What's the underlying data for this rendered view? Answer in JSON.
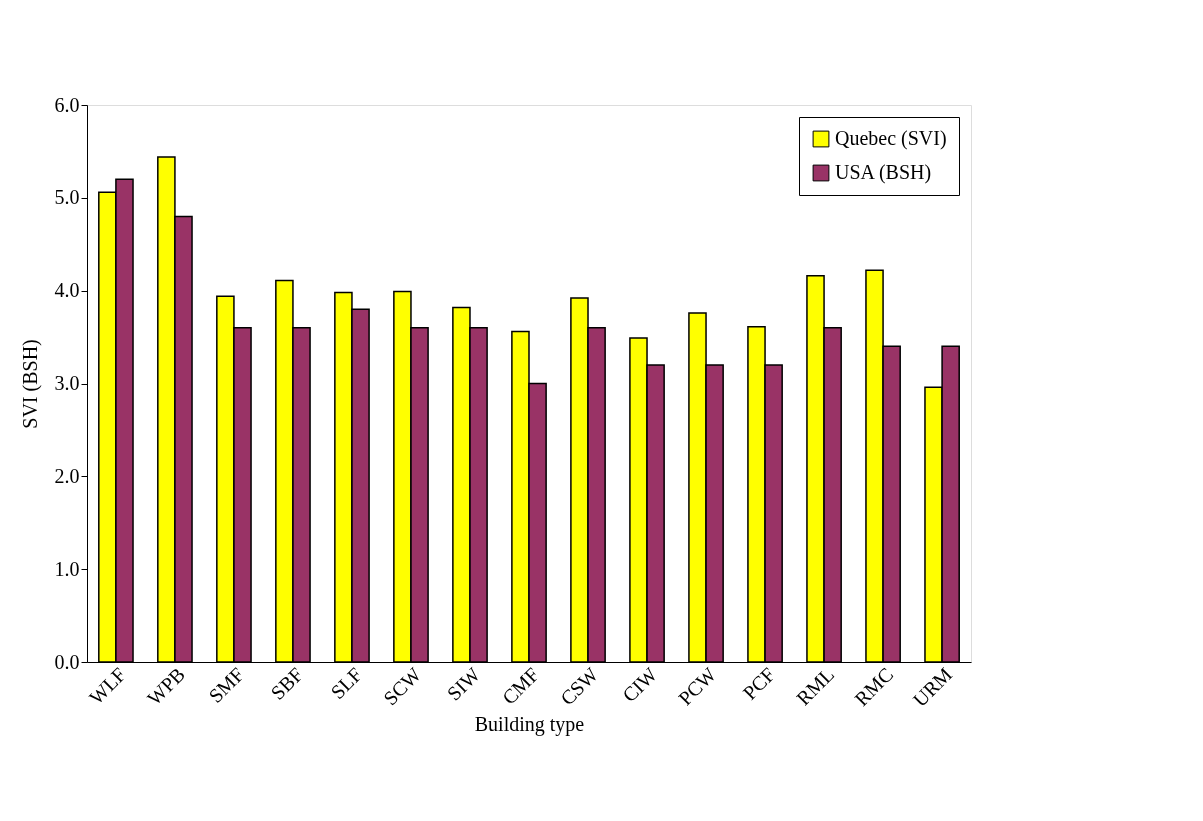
{
  "chart_data": {
    "type": "bar",
    "xlabel": "Building type",
    "ylabel": "SVI (BSH)",
    "categories": [
      "WLF",
      "WPB",
      "SMF",
      "SBF",
      "SLF",
      "SCW",
      "SIW",
      "CMF",
      "CSW",
      "CIW",
      "PCW",
      "PCF",
      "RML",
      "RMC",
      "URM"
    ],
    "series": [
      {
        "name": "Quebec (SVI)",
        "color": "#ffff00",
        "values": [
          5.06,
          5.44,
          3.94,
          4.11,
          3.98,
          3.99,
          3.82,
          3.56,
          3.92,
          3.49,
          3.76,
          3.61,
          4.16,
          4.22,
          2.96
        ]
      },
      {
        "name": "USA (BSH)",
        "color": "#993366",
        "values": [
          5.2,
          4.8,
          3.6,
          3.6,
          3.8,
          3.6,
          3.6,
          3.0,
          3.6,
          3.2,
          3.2,
          3.2,
          3.6,
          3.4,
          3.4
        ]
      }
    ],
    "ylim": [
      0,
      6
    ],
    "yticks": [
      {
        "value": 0,
        "label": "0.0"
      },
      {
        "value": 1,
        "label": "1.0"
      },
      {
        "value": 2,
        "label": "2.0"
      },
      {
        "value": 3,
        "label": "3.0"
      },
      {
        "value": 4,
        "label": "4.0"
      },
      {
        "value": 5,
        "label": "5.0"
      },
      {
        "value": 6,
        "label": "6.0"
      }
    ],
    "grid": false,
    "legend": "top right"
  }
}
